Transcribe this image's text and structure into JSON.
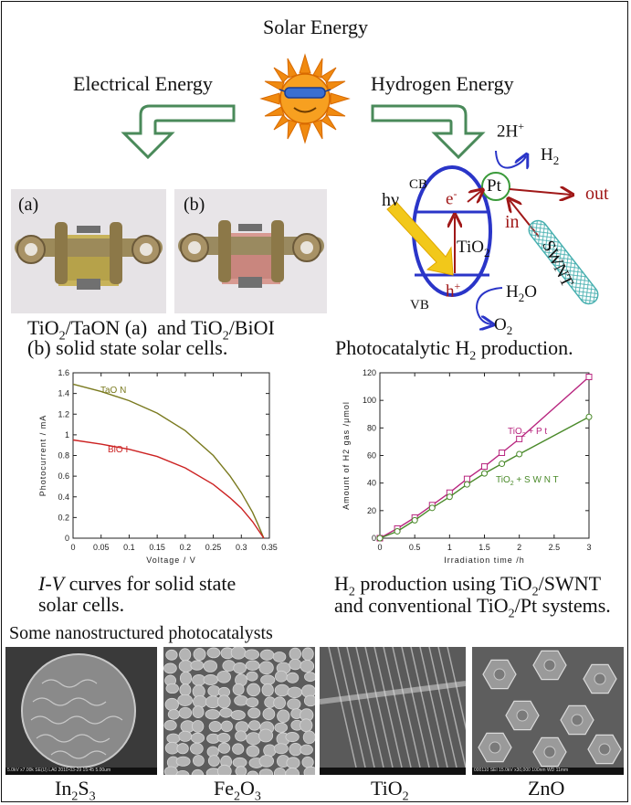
{
  "header": {
    "title": "Solar Energy",
    "left_label": "Electrical Energy",
    "right_label": "Hydrogen Energy"
  },
  "cells": {
    "label_a": "(a)",
    "label_b": "(b)",
    "caption_line1": "TiO2/TaON (a)  and TiO2/BiOI",
    "caption_line2": "(b) solid state solar cells."
  },
  "mechanism": {
    "cb": "CB",
    "vb": "VB",
    "hv": "hν",
    "electron": "e-",
    "hole": "h+",
    "tio2": "TiO2",
    "pt": "Pt",
    "two_h": "2H+",
    "h2": "H2",
    "out": "out",
    "in": "in",
    "swnt": "SWNT",
    "h2o": "H2O",
    "o2": "O2",
    "caption": "Photocatalytic H2 production."
  },
  "charts": {
    "iv_caption_1": "I-V curves for solid state",
    "iv_caption_2": "solar cells.",
    "h2_caption_1": "H2 production using TiO2/SWNT",
    "h2_caption_2": "and conventional TiO2/Pt systems."
  },
  "chart_data": [
    {
      "type": "line",
      "xlabel": "Voltage / V",
      "ylabel": "Photocurrent / mA",
      "xlim": [
        0,
        0.35
      ],
      "ylim": [
        0,
        1.6
      ],
      "xticks": [
        "0",
        "0.05",
        "0.1",
        "0.15",
        "0.2",
        "0.25",
        "0.3",
        "0.35"
      ],
      "yticks": [
        "0",
        "0.2",
        "0.4",
        "0.6",
        "0.8",
        "1",
        "1.2",
        "1.4",
        "1.6"
      ],
      "series": [
        {
          "name": "TaO N",
          "color": "#7a7a1f",
          "x": [
            0,
            0.05,
            0.1,
            0.15,
            0.2,
            0.25,
            0.28,
            0.3,
            0.32,
            0.33,
            0.34
          ],
          "y": [
            1.49,
            1.42,
            1.33,
            1.21,
            1.04,
            0.8,
            0.6,
            0.44,
            0.25,
            0.13,
            0.0
          ]
        },
        {
          "name": "BiO I",
          "color": "#cc2222",
          "x": [
            0,
            0.05,
            0.1,
            0.15,
            0.2,
            0.25,
            0.28,
            0.3,
            0.32,
            0.33,
            0.34
          ],
          "y": [
            0.95,
            0.91,
            0.86,
            0.79,
            0.68,
            0.52,
            0.39,
            0.29,
            0.16,
            0.08,
            0.0
          ]
        }
      ]
    },
    {
      "type": "line",
      "xlabel": "Irradiation time /h",
      "ylabel": "Amount of H2 gas /μmol",
      "xlim": [
        0,
        3
      ],
      "ylim": [
        0,
        120
      ],
      "xticks": [
        "0",
        "0.5",
        "1",
        "1.5",
        "2",
        "2.5",
        "3"
      ],
      "yticks": [
        "0",
        "20",
        "40",
        "60",
        "80",
        "100",
        "120"
      ],
      "series": [
        {
          "name": "TiO2+Pt",
          "color": "#b8267f",
          "marker": "square",
          "x": [
            0,
            0.25,
            0.5,
            0.75,
            1,
            1.25,
            1.5,
            1.75,
            2,
            3
          ],
          "y": [
            0,
            7,
            15,
            24,
            33,
            43,
            52,
            62,
            72,
            117
          ]
        },
        {
          "name": "TiO2+SWNT",
          "color": "#4a8a2a",
          "marker": "circle",
          "x": [
            0,
            0.25,
            0.5,
            0.75,
            1,
            1.25,
            1.5,
            1.75,
            2,
            3
          ],
          "y": [
            0,
            5,
            13,
            22,
            30,
            39,
            47,
            54,
            61,
            88
          ]
        }
      ]
    }
  ],
  "gallery": {
    "title": "Some nanostructured photocatalysts",
    "labels": [
      "In2S3",
      "Fe2O3",
      "TiO2",
      "ZnO"
    ],
    "sem_bar_1": "5.0kV x7.00k SE(U) LA0 2010-03-29 15:45  5.00um",
    "sem_bar_4": "000110 SEI 15.0kV x30,000 100nm WD 11mm"
  },
  "colors": {
    "arrow_green": "#4a8a5a",
    "band_blue": "#2a35c8",
    "dark_red": "#a01818",
    "sun_orange": "#f08a10"
  }
}
